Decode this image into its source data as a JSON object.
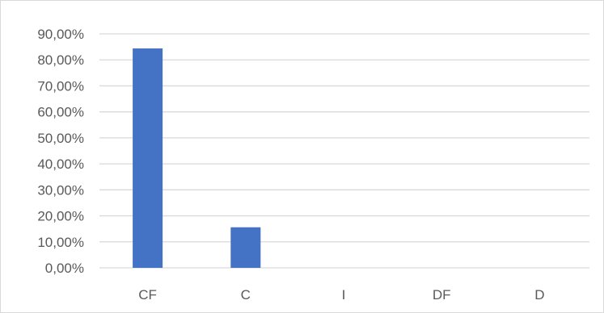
{
  "chart_data": {
    "type": "bar",
    "title": "",
    "xlabel": "",
    "ylabel": "",
    "categories": [
      "CF",
      "C",
      "I",
      "DF",
      "D"
    ],
    "values": [
      84.4,
      15.6,
      0,
      0,
      0
    ],
    "ylim": [
      0,
      90
    ],
    "yticks": [
      0,
      10,
      20,
      30,
      40,
      50,
      60,
      70,
      80,
      90
    ],
    "ytick_labels": [
      "0,00%",
      "10,00%",
      "20,00%",
      "30,00%",
      "40,00%",
      "50,00%",
      "60,00%",
      "70,00%",
      "80,00%",
      "90,00%"
    ],
    "grid": true,
    "legend": "none",
    "bar_color": "#4472c4",
    "grid_color": "#d9d9d9"
  }
}
